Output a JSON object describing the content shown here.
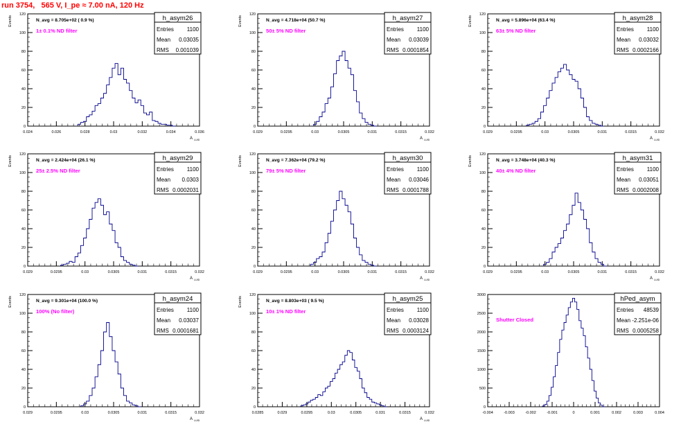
{
  "run_title": "run 3754,   565 V, I_pe ≈ 7.00 nA, 120 Hz",
  "colors": {
    "title": "#ff0000",
    "filter_label": "#ff00ff",
    "histogram": "#00008b",
    "frame": "#000000"
  },
  "chart_data": [
    {
      "type": "histogram",
      "name": "h_asym26",
      "entries": "1100",
      "mean": "0.03035",
      "rms": "0.001039",
      "navg": "N_avg = 8.705e+02 ( 0.9 %)",
      "filter": "1± 0.1% ND filter",
      "xlabel": "A",
      "xlabel_sub": "LUID",
      "ylabel": "Events",
      "xlim": [
        0.024,
        0.036
      ],
      "ylim": [
        0,
        120
      ],
      "xticks": [
        "0.024",
        "0.026",
        "0.028",
        "0.03",
        "0.032",
        "0.034",
        "0.036"
      ],
      "yticks": [
        "0",
        "20",
        "40",
        "60",
        "80",
        "100",
        "120"
      ],
      "x": [
        0.0276,
        0.0278,
        0.028,
        0.0282,
        0.0284,
        0.0286,
        0.0288,
        0.029,
        0.0292,
        0.0294,
        0.0296,
        0.0298,
        0.03,
        0.0302,
        0.0304,
        0.0306,
        0.0308,
        0.031,
        0.0312,
        0.0314,
        0.0316,
        0.0318,
        0.032,
        0.0322,
        0.0324,
        0.0326,
        0.0328,
        0.033,
        0.0332,
        0.0334,
        0.0336,
        0.0338,
        0.034,
        0.0342
      ],
      "y": [
        2,
        4,
        5,
        10,
        12,
        16,
        22,
        24,
        30,
        35,
        44,
        52,
        62,
        67,
        55,
        62,
        50,
        46,
        38,
        30,
        25,
        28,
        22,
        14,
        12,
        15,
        6,
        5,
        3,
        2,
        2,
        1,
        1,
        0
      ]
    },
    {
      "type": "histogram",
      "name": "h_asym27",
      "entries": "1100",
      "mean": "0.03039",
      "rms": "0.0001854",
      "navg": "N_avg = 4.718e+04 (50.7 %)",
      "filter": "50± 5% ND filter",
      "xlabel": "A",
      "xlabel_sub": "LUID",
      "ylabel": "Events",
      "xlim": [
        0.029,
        0.032
      ],
      "ylim": [
        0,
        120
      ],
      "xticks": [
        "0.029",
        "0.0295",
        "0.03",
        "0.0305",
        "0.031",
        "0.0315",
        "0.032"
      ],
      "yticks": [
        "0",
        "20",
        "40",
        "60",
        "80",
        "100",
        "120"
      ],
      "x": [
        0.03,
        0.03005,
        0.0301,
        0.03015,
        0.0302,
        0.03025,
        0.0303,
        0.03035,
        0.0304,
        0.03045,
        0.0305,
        0.03055,
        0.0306,
        0.03065,
        0.0307,
        0.03075,
        0.0308,
        0.03085,
        0.0309,
        0.03095,
        0.031,
        0.03105
      ],
      "y": [
        2,
        5,
        10,
        15,
        24,
        30,
        42,
        56,
        70,
        75,
        80,
        70,
        62,
        55,
        38,
        26,
        14,
        8,
        4,
        2,
        1,
        0
      ]
    },
    {
      "type": "histogram",
      "name": "h_asym28",
      "entries": "1100",
      "mean": "0.03032",
      "rms": "0.0002166",
      "navg": "N_avg = 5.896e+04 (63.4 %)",
      "filter": "63± 5% ND filter",
      "xlabel": "A",
      "xlabel_sub": "LUID",
      "ylabel": "Events",
      "xlim": [
        0.029,
        0.032
      ],
      "ylim": [
        0,
        120
      ],
      "xticks": [
        "0.029",
        "0.0295",
        "0.03",
        "0.0305",
        "0.031",
        "0.0315",
        "0.032"
      ],
      "yticks": [
        "0",
        "20",
        "40",
        "60",
        "80",
        "100",
        "120"
      ],
      "x": [
        0.0297,
        0.02975,
        0.0298,
        0.02985,
        0.0299,
        0.02995,
        0.03,
        0.03005,
        0.0301,
        0.03015,
        0.0302,
        0.03025,
        0.0303,
        0.03035,
        0.0304,
        0.03045,
        0.0305,
        0.03055,
        0.0306,
        0.03065,
        0.0307,
        0.03075,
        0.0308,
        0.03085,
        0.0309,
        0.03095,
        0.031
      ],
      "y": [
        1,
        2,
        3,
        5,
        8,
        15,
        22,
        30,
        38,
        46,
        52,
        58,
        62,
        66,
        60,
        55,
        50,
        48,
        40,
        30,
        20,
        10,
        6,
        3,
        2,
        1,
        0
      ]
    },
    {
      "type": "histogram",
      "name": "h_asym29",
      "entries": "1100",
      "mean": "0.0303",
      "rms": "0.0002031",
      "navg": "N_avg = 2.424e+04 (26.1 %)",
      "filter": "25± 2.5% ND filter",
      "xlabel": "A",
      "xlabel_sub": "LUID",
      "ylabel": "Events",
      "xlim": [
        0.029,
        0.032
      ],
      "ylim": [
        0,
        120
      ],
      "xticks": [
        "0.029",
        "0.0295",
        "0.03",
        "0.0305",
        "0.031",
        "0.0315",
        "0.032"
      ],
      "yticks": [
        "0",
        "20",
        "40",
        "60",
        "80",
        "100",
        "120"
      ],
      "x": [
        0.0296,
        0.02965,
        0.0297,
        0.02975,
        0.0298,
        0.02985,
        0.0299,
        0.02995,
        0.03,
        0.03005,
        0.0301,
        0.03015,
        0.0302,
        0.03025,
        0.0303,
        0.03035,
        0.0304,
        0.03045,
        0.0305,
        0.03055,
        0.0306,
        0.03065,
        0.0307,
        0.03075,
        0.0308,
        0.03085,
        0.0309
      ],
      "y": [
        1,
        2,
        3,
        5,
        4,
        10,
        14,
        22,
        30,
        40,
        50,
        62,
        68,
        72,
        65,
        55,
        58,
        45,
        38,
        25,
        20,
        10,
        6,
        4,
        2,
        1,
        0
      ]
    },
    {
      "type": "histogram",
      "name": "h_asym30",
      "entries": "1100",
      "mean": "0.03046",
      "rms": "0.0001788",
      "navg": "N_avg = 7.362e+04 (79.2 %)",
      "filter": "79± 5% ND filter",
      "xlabel": "A",
      "xlabel_sub": "LUID",
      "ylabel": "Events",
      "xlim": [
        0.029,
        0.032
      ],
      "ylim": [
        0,
        120
      ],
      "xticks": [
        "0.029",
        "0.0295",
        "0.03",
        "0.0305",
        "0.031",
        "0.0315",
        "0.032"
      ],
      "yticks": [
        "0",
        "20",
        "40",
        "60",
        "80",
        "100",
        "120"
      ],
      "x": [
        0.02995,
        0.03,
        0.03005,
        0.0301,
        0.03015,
        0.0302,
        0.03025,
        0.0303,
        0.03035,
        0.0304,
        0.03045,
        0.0305,
        0.03055,
        0.0306,
        0.03065,
        0.0307,
        0.03075,
        0.0308,
        0.03085,
        0.0309,
        0.03095,
        0.031,
        0.03105
      ],
      "y": [
        2,
        4,
        8,
        10,
        15,
        25,
        35,
        48,
        60,
        70,
        80,
        72,
        65,
        58,
        45,
        30,
        20,
        12,
        6,
        4,
        2,
        1,
        0
      ]
    },
    {
      "type": "histogram",
      "name": "h_asym31",
      "entries": "1100",
      "mean": "0.03051",
      "rms": "0.0002008",
      "navg": "N_avg = 3.748e+04 (40.3 %)",
      "filter": "40± 4% ND filter",
      "xlabel": "A",
      "xlabel_sub": "LUID",
      "ylabel": "Events",
      "xlim": [
        0.029,
        0.032
      ],
      "ylim": [
        0,
        120
      ],
      "xticks": [
        "0.029",
        "0.0295",
        "0.03",
        "0.0305",
        "0.031",
        "0.0315",
        "0.032"
      ],
      "yticks": [
        "0",
        "20",
        "40",
        "60",
        "80",
        "100",
        "120"
      ],
      "x": [
        0.03,
        0.03005,
        0.0301,
        0.03015,
        0.0302,
        0.03025,
        0.0303,
        0.03035,
        0.0304,
        0.03045,
        0.0305,
        0.03055,
        0.0306,
        0.03065,
        0.0307,
        0.03075,
        0.0308,
        0.03085,
        0.0309,
        0.03095,
        0.031,
        0.03105
      ],
      "y": [
        2,
        4,
        8,
        15,
        20,
        24,
        30,
        38,
        45,
        55,
        65,
        78,
        68,
        60,
        50,
        40,
        25,
        15,
        8,
        4,
        2,
        0
      ]
    },
    {
      "type": "histogram",
      "name": "h_asym24",
      "entries": "1100",
      "mean": "0.03037",
      "rms": "0.0001681",
      "navg": "N_avg = 9.301e+04 (100.0 %)",
      "filter": "100% (No filter)",
      "xlabel": "A",
      "xlabel_sub": "LUID",
      "ylabel": "Events",
      "xlim": [
        0.029,
        0.032
      ],
      "ylim": [
        0,
        120
      ],
      "xticks": [
        "0.029",
        "0.0295",
        "0.03",
        "0.0305",
        "0.031",
        "0.0315",
        "0.032"
      ],
      "yticks": [
        "0",
        "20",
        "40",
        "60",
        "80",
        "100",
        "120"
      ],
      "x": [
        0.02995,
        0.03,
        0.03005,
        0.0301,
        0.03015,
        0.0302,
        0.03025,
        0.0303,
        0.03035,
        0.0304,
        0.03045,
        0.0305,
        0.03055,
        0.0306,
        0.03065,
        0.0307,
        0.03075,
        0.0308,
        0.03085,
        0.0309,
        0.03095
      ],
      "y": [
        1,
        3,
        6,
        12,
        20,
        32,
        45,
        60,
        80,
        90,
        75,
        60,
        48,
        35,
        20,
        12,
        6,
        4,
        2,
        1,
        0
      ]
    },
    {
      "type": "histogram",
      "name": "h_asym25",
      "entries": "1100",
      "mean": "0.03028",
      "rms": "0.0003124",
      "navg": "N_avg = 8.803e+03 ( 9.5 %)",
      "filter": "10± 1% ND filter",
      "xlabel": "A",
      "xlabel_sub": "LUID",
      "ylabel": "Events",
      "xlim": [
        0.0285,
        0.032
      ],
      "ylim": [
        0,
        120
      ],
      "xticks": [
        "0.0285",
        "0.029",
        "0.0295",
        "0.03",
        "0.0305",
        "0.031",
        "0.0315",
        "0.032"
      ],
      "yticks": [
        "0",
        "20",
        "40",
        "60",
        "80",
        "100",
        "120"
      ],
      "x": [
        0.0294,
        0.02945,
        0.0295,
        0.02955,
        0.0296,
        0.02965,
        0.0297,
        0.02975,
        0.0298,
        0.02985,
        0.0299,
        0.02995,
        0.03,
        0.03005,
        0.0301,
        0.03015,
        0.0302,
        0.03025,
        0.0303,
        0.03035,
        0.0304,
        0.03045,
        0.0305,
        0.03055,
        0.0306,
        0.03065,
        0.0307,
        0.03075,
        0.0308,
        0.03085,
        0.0309,
        0.03095,
        0.031,
        0.03105,
        0.0311
      ],
      "y": [
        1,
        2,
        3,
        5,
        7,
        8,
        10,
        13,
        12,
        16,
        20,
        22,
        27,
        30,
        36,
        40,
        45,
        48,
        55,
        60,
        58,
        50,
        42,
        38,
        30,
        20,
        15,
        10,
        8,
        5,
        4,
        3,
        2,
        1,
        0
      ]
    },
    {
      "type": "histogram",
      "name": "hPed_asym",
      "entries": "48539",
      "mean": "-2.251e-06",
      "rms": "0.0005258",
      "navg": "",
      "filter": "Shutter Closed",
      "xlabel": "",
      "xlabel_sub": "",
      "ylabel": "",
      "xlim": [
        -0.004,
        0.004
      ],
      "ylim": [
        0,
        3000
      ],
      "xticks": [
        "-0.004",
        "-0.003",
        "-0.002",
        "-0.001",
        "0",
        "0.001",
        "0.002",
        "0.003",
        "0.004"
      ],
      "yticks": [
        "0",
        "500",
        "1000",
        "1500",
        "2000",
        "2500",
        "3000"
      ],
      "x": [
        -0.0014,
        -0.0013,
        -0.0012,
        -0.0011,
        -0.001,
        -0.0009,
        -0.0008,
        -0.0007,
        -0.0006,
        -0.0005,
        -0.0004,
        -0.0003,
        -0.0002,
        -0.0001,
        0.0,
        0.0001,
        0.0002,
        0.0003,
        0.0004,
        0.0005,
        0.0006,
        0.0007,
        0.0008,
        0.0009,
        0.001,
        0.0011,
        0.0012,
        0.0013,
        0.0014
      ],
      "y": [
        20,
        60,
        150,
        300,
        520,
        800,
        1100,
        1450,
        1800,
        2050,
        2250,
        2450,
        2650,
        2800,
        2900,
        2800,
        2600,
        2300,
        2100,
        1900,
        1600,
        1300,
        1000,
        700,
        420,
        230,
        100,
        40,
        0
      ]
    }
  ]
}
